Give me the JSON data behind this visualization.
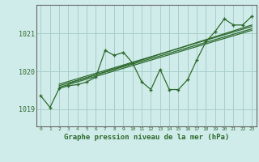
{
  "background_color": "#d0ecea",
  "grid_color": "#a8cfc9",
  "line_color": "#2d6a2d",
  "title": "Graphe pression niveau de la mer (hPa)",
  "ylabel_ticks": [
    1019,
    1020,
    1021
  ],
  "xlim": [
    -0.5,
    23.5
  ],
  "ylim": [
    1018.55,
    1021.75
  ],
  "x_labels": [
    "0",
    "1",
    "2",
    "3",
    "4",
    "5",
    "6",
    "7",
    "8",
    "9",
    "10",
    "11",
    "12",
    "13",
    "14",
    "15",
    "16",
    "17",
    "18",
    "19",
    "20",
    "21",
    "22",
    "23"
  ],
  "main_data": [
    [
      0,
      1019.35
    ],
    [
      1,
      1019.05
    ],
    [
      2,
      1019.55
    ],
    [
      3,
      1019.62
    ],
    [
      4,
      1019.65
    ],
    [
      5,
      1019.72
    ],
    [
      6,
      1019.85
    ],
    [
      7,
      1020.55
    ],
    [
      8,
      1020.42
    ],
    [
      9,
      1020.5
    ],
    [
      10,
      1020.22
    ],
    [
      11,
      1019.72
    ],
    [
      12,
      1019.52
    ],
    [
      13,
      1020.05
    ],
    [
      14,
      1019.52
    ],
    [
      15,
      1019.52
    ],
    [
      16,
      1019.78
    ],
    [
      17,
      1020.3
    ],
    [
      18,
      1020.78
    ],
    [
      19,
      1021.05
    ],
    [
      20,
      1021.38
    ],
    [
      21,
      1021.22
    ],
    [
      22,
      1021.22
    ],
    [
      23,
      1021.45
    ]
  ],
  "trend_lines": [
    [
      [
        2,
        1019.58
      ],
      [
        23,
        1021.08
      ]
    ],
    [
      [
        2,
        1019.62
      ],
      [
        23,
        1021.12
      ]
    ],
    [
      [
        2,
        1019.66
      ],
      [
        23,
        1021.18
      ]
    ],
    [
      [
        3,
        1019.68
      ],
      [
        23,
        1021.22
      ]
    ]
  ]
}
